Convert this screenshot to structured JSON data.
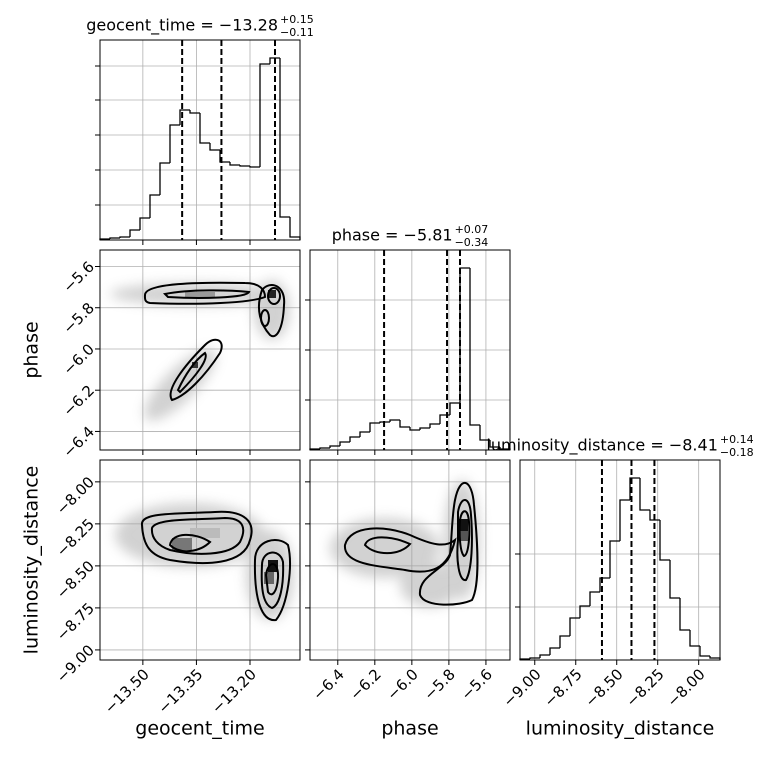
{
  "chart_data": [
    {
      "type": "histogram",
      "title": "geocent_time = −13.28",
      "title_sup": "+0.15",
      "title_sub": "−0.11",
      "xlabel": "geocent_time",
      "bins": [
        -13.62,
        -13.592,
        -13.564,
        -13.536,
        -13.508,
        -13.48,
        -13.452,
        -13.424,
        -13.396,
        -13.368,
        -13.34,
        -13.312,
        -13.284,
        -13.256,
        -13.228,
        -13.2,
        -13.172,
        -13.144,
        -13.116,
        -13.088,
        -13.06
      ],
      "values": [
        1,
        2,
        3,
        10,
        22,
        45,
        77,
        115,
        130,
        127,
        97,
        90,
        78,
        75,
        74,
        73,
        176,
        182,
        23,
        3
      ],
      "xlim": [
        -13.62,
        -13.06
      ],
      "xticks": [
        {
          "value": -13.5,
          "label": "−13.50"
        },
        {
          "value": -13.35,
          "label": "−13.35"
        },
        {
          "value": -13.2,
          "label": "−13.20"
        }
      ],
      "ylim": [
        0,
        200
      ],
      "yticks": [
        35,
        70,
        105,
        140,
        174
      ],
      "quantiles": [
        -13.39,
        -13.28,
        -13.13
      ],
      "color": "#000000",
      "grid": true
    },
    {
      "type": "histogram",
      "title": "phase = −5.81",
      "title_sup": "+0.07",
      "title_sub": "−0.34",
      "xlabel": "phase",
      "bins": [
        -6.55,
        -6.496,
        -6.442,
        -6.388,
        -6.334,
        -6.28,
        -6.226,
        -6.172,
        -6.118,
        -6.064,
        -6.01,
        -5.956,
        -5.902,
        -5.848,
        -5.794,
        -5.74,
        -5.686,
        -5.632,
        -5.578,
        -5.524,
        -5.47
      ],
      "values": [
        1,
        2,
        4,
        8,
        13,
        18,
        27,
        28,
        30,
        23,
        20,
        22,
        26,
        35,
        47,
        182,
        25,
        10,
        3,
        1
      ],
      "xlim": [
        -6.55,
        -5.47
      ],
      "xticks": [
        {
          "value": -6.4,
          "label": "−6.4"
        },
        {
          "value": -6.2,
          "label": "−6.2"
        },
        {
          "value": -6.0,
          "label": "−6.0"
        },
        {
          "value": -5.8,
          "label": "−5.8"
        },
        {
          "value": -5.6,
          "label": "−5.6"
        }
      ],
      "ylim": [
        0,
        200
      ],
      "yticks": [
        50,
        100,
        150
      ],
      "quantiles": [
        -6.15,
        -5.81,
        -5.74
      ],
      "color": "#000000",
      "grid": true
    },
    {
      "type": "histogram",
      "title": "luminosity_distance = −8.41",
      "title_sup": "+0.14",
      "title_sub": "−0.18",
      "xlabel": "luminosity_distance",
      "bins": [
        -9.09,
        -9.029,
        -8.968,
        -8.907,
        -8.846,
        -8.785,
        -8.724,
        -8.663,
        -8.602,
        -8.541,
        -8.48,
        -8.419,
        -8.358,
        -8.297,
        -8.236,
        -8.175,
        -8.114,
        -8.053,
        -7.992,
        -7.931,
        -7.87
      ],
      "values": [
        1,
        2,
        5,
        12,
        24,
        42,
        54,
        68,
        82,
        119,
        160,
        182,
        150,
        140,
        100,
        62,
        30,
        14,
        4,
        2
      ],
      "xlim": [
        -9.09,
        -7.87
      ],
      "xticks": [
        {
          "value": -9.0,
          "label": "−9.00"
        },
        {
          "value": -8.75,
          "label": "−8.75"
        },
        {
          "value": -8.5,
          "label": "−8.50"
        },
        {
          "value": -8.25,
          "label": "−8.25"
        },
        {
          "value": -8.0,
          "label": "−8.00"
        }
      ],
      "ylim": [
        0,
        200
      ],
      "yticks": [
        53,
        106
      ],
      "quantiles": [
        -8.59,
        -8.41,
        -8.27
      ],
      "color": "#000000",
      "grid": true
    },
    {
      "type": "contour",
      "ylabel": "phase",
      "ylim": [
        -6.49,
        -5.52
      ],
      "yticks": [
        {
          "value": -5.6,
          "label": "−5.6"
        },
        {
          "value": -5.8,
          "label": "−5.8"
        },
        {
          "value": -6.0,
          "label": "−6.0"
        },
        {
          "value": -6.2,
          "label": "−6.2"
        },
        {
          "value": -6.4,
          "label": "−6.4"
        }
      ]
    },
    {
      "type": "contour",
      "ylabel": "luminosity_distance",
      "ylim": [
        -9.06,
        -7.87
      ],
      "yticks": [
        {
          "value": -8.0,
          "label": "−8.00"
        },
        {
          "value": -8.25,
          "label": "−8.25"
        },
        {
          "value": -8.5,
          "label": "−8.50"
        },
        {
          "value": -8.75,
          "label": "−8.75"
        },
        {
          "value": -9.0,
          "label": "−9.00"
        }
      ]
    }
  ]
}
